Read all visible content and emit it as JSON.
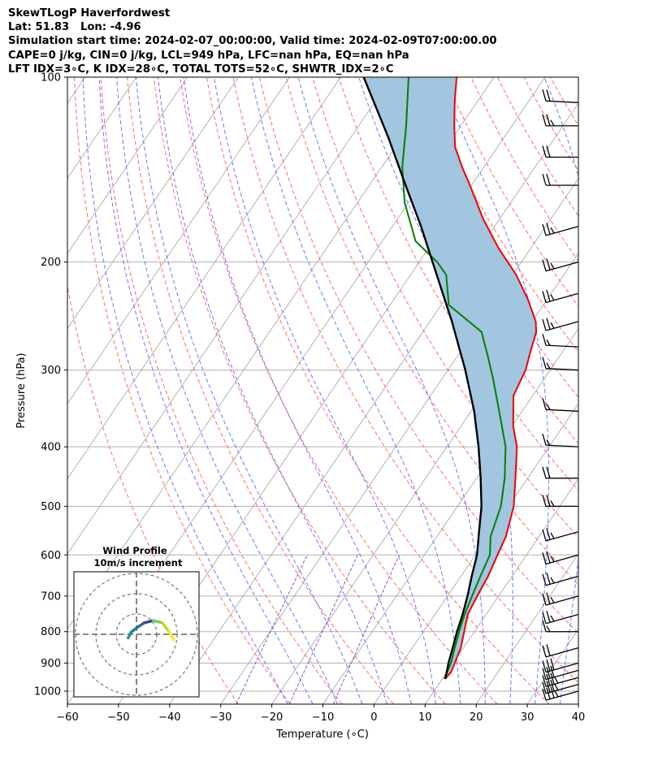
{
  "title_lines": [
    "SkewTLogP Haverfordwest",
    "Lat: 51.83   Lon: -4.96",
    "Simulation start time: 2024-02-07_00:00:00, Valid time: 2024-02-09T07:00:00.00",
    "CAPE=0 j/kg, CIN=0 j/kg, LCL=949 hPa, LFC=nan hPa, EQ=nan hPa",
    "LFT IDX=3∘C, K IDX=28∘C, TOTAL TOTS=52∘C, SHWTR_IDX=2∘C"
  ],
  "chart_data": {
    "type": "line",
    "subtype": "skew-T log-P",
    "title": "SkewTLogP Haverfordwest",
    "xlabel": "Temperature (∘C)",
    "ylabel": "Pressure (hPa)",
    "xlim": [
      -60,
      40
    ],
    "ylim": [
      1050,
      100
    ],
    "y_scale": "log",
    "x_ticks": [
      -60,
      -50,
      -40,
      -30,
      -20,
      -10,
      0,
      10,
      20,
      30,
      40
    ],
    "x_tick_labels": [
      "−60",
      "−50",
      "−40",
      "−30",
      "−20",
      "−10",
      "0",
      "10",
      "20",
      "30",
      "40"
    ],
    "y_ticks": [
      1000,
      900,
      800,
      700,
      600,
      500,
      400,
      300,
      200,
      100
    ],
    "y_tick_labels": [
      "1000",
      "900",
      "800",
      "700",
      "600",
      "500",
      "400",
      "300",
      "200",
      "100"
    ],
    "grid": true,
    "colors": {
      "temperature": "#ee0000",
      "dewpoint": "#008000",
      "parcel": "#000000",
      "cape_fill": "#a2c6e0",
      "dry_adiabat": "#ff6b6b",
      "moist_adiabat": "#5a5aff",
      "mixing_ratio": "#8040c8",
      "isotherm": "#aaaaaa"
    },
    "series": [
      {
        "key": "temperature",
        "p": [
          955,
          930,
          910,
          850,
          800,
          750,
          700,
          650,
          600,
          560,
          500,
          450,
          400,
          370,
          330,
          300,
          280,
          260,
          250,
          230,
          210,
          190,
          170,
          150,
          140,
          130,
          120,
          110,
          100
        ],
        "t": [
          10.6,
          10.8,
          10.5,
          9.5,
          8.0,
          6.4,
          5.8,
          5.3,
          4.3,
          3.5,
          1.0,
          -2.4,
          -6.3,
          -9.8,
          -13.8,
          -14.8,
          -16.3,
          -17.8,
          -19.3,
          -23.8,
          -29.3,
          -36.3,
          -43.3,
          -50.3,
          -54.3,
          -58.3,
          -61.3,
          -64.3,
          -67.3
        ]
      },
      {
        "key": "dewpoint",
        "p": [
          955,
          900,
          850,
          800,
          750,
          700,
          650,
          600,
          560,
          500,
          450,
          400,
          350,
          310,
          285,
          260,
          235,
          210,
          200,
          185,
          160,
          140,
          120,
          100
        ],
        "t": [
          10.4,
          9.6,
          8.3,
          7.0,
          5.8,
          4.8,
          3.8,
          2.8,
          0.5,
          -1.5,
          -4.5,
          -8.5,
          -14.5,
          -20.0,
          -24.0,
          -28.5,
          -38.5,
          -43.0,
          -46.5,
          -53.5,
          -60.8,
          -66.0,
          -70.7,
          -76.7
        ]
      },
      {
        "key": "parcel",
        "p": [
          955,
          900,
          850,
          800,
          750,
          700,
          650,
          600,
          550,
          500,
          450,
          400,
          350,
          300,
          250,
          200,
          175,
          150,
          125,
          100
        ],
        "t": [
          10.6,
          9.1,
          7.9,
          6.6,
          5.4,
          3.9,
          2.1,
          0.3,
          -2.4,
          -5.3,
          -9.2,
          -13.8,
          -19.4,
          -26.6,
          -35.7,
          -47.4,
          -54.4,
          -62.9,
          -72.8,
          -85.5
        ]
      }
    ],
    "wind_barbs": [
      {
        "p": 1000,
        "speed_kt": 35,
        "dir_deg": 245
      },
      {
        "p": 975,
        "speed_kt": 35,
        "dir_deg": 245
      },
      {
        "p": 950,
        "speed_kt": 35,
        "dir_deg": 250
      },
      {
        "p": 925,
        "speed_kt": 30,
        "dir_deg": 250
      },
      {
        "p": 900,
        "speed_kt": 30,
        "dir_deg": 250
      },
      {
        "p": 850,
        "speed_kt": 20,
        "dir_deg": 255
      },
      {
        "p": 800,
        "speed_kt": 15,
        "dir_deg": 265
      },
      {
        "p": 750,
        "speed_kt": 25,
        "dir_deg": 250
      },
      {
        "p": 700,
        "speed_kt": 25,
        "dir_deg": 250
      },
      {
        "p": 650,
        "speed_kt": 25,
        "dir_deg": 250
      },
      {
        "p": 600,
        "speed_kt": 25,
        "dir_deg": 250
      },
      {
        "p": 550,
        "speed_kt": 25,
        "dir_deg": 250
      },
      {
        "p": 500,
        "speed_kt": 25,
        "dir_deg": 260
      },
      {
        "p": 450,
        "speed_kt": 20,
        "dir_deg": 265
      },
      {
        "p": 400,
        "speed_kt": 15,
        "dir_deg": 275
      },
      {
        "p": 350,
        "speed_kt": 15,
        "dir_deg": 290
      },
      {
        "p": 300,
        "speed_kt": 15,
        "dir_deg": 275
      },
      {
        "p": 275,
        "speed_kt": 15,
        "dir_deg": 270
      },
      {
        "p": 250,
        "speed_kt": 25,
        "dir_deg": 245
      },
      {
        "p": 225,
        "speed_kt": 25,
        "dir_deg": 245
      },
      {
        "p": 200,
        "speed_kt": 25,
        "dir_deg": 245
      },
      {
        "p": 175,
        "speed_kt": 25,
        "dir_deg": 245
      },
      {
        "p": 150,
        "speed_kt": 20,
        "dir_deg": 260
      },
      {
        "p": 135,
        "speed_kt": 20,
        "dir_deg": 265
      },
      {
        "p": 120,
        "speed_kt": 25,
        "dir_deg": 265
      },
      {
        "p": 110,
        "speed_kt": 20,
        "dir_deg": 270
      }
    ],
    "hodograph": {
      "title_line1": "Wind Profile",
      "title_line2": "10m/s increment",
      "ring_step_ms": 10,
      "rings": 3,
      "points_ms": [
        [
          -4.5,
          -0.8
        ],
        [
          -3.8,
          0.5
        ],
        [
          -2.5,
          1.5
        ],
        [
          -1,
          2.5
        ],
        [
          1,
          3
        ],
        [
          3,
          2.5
        ],
        [
          4.5,
          0.5
        ],
        [
          5.5,
          -1.2
        ]
      ]
    }
  }
}
